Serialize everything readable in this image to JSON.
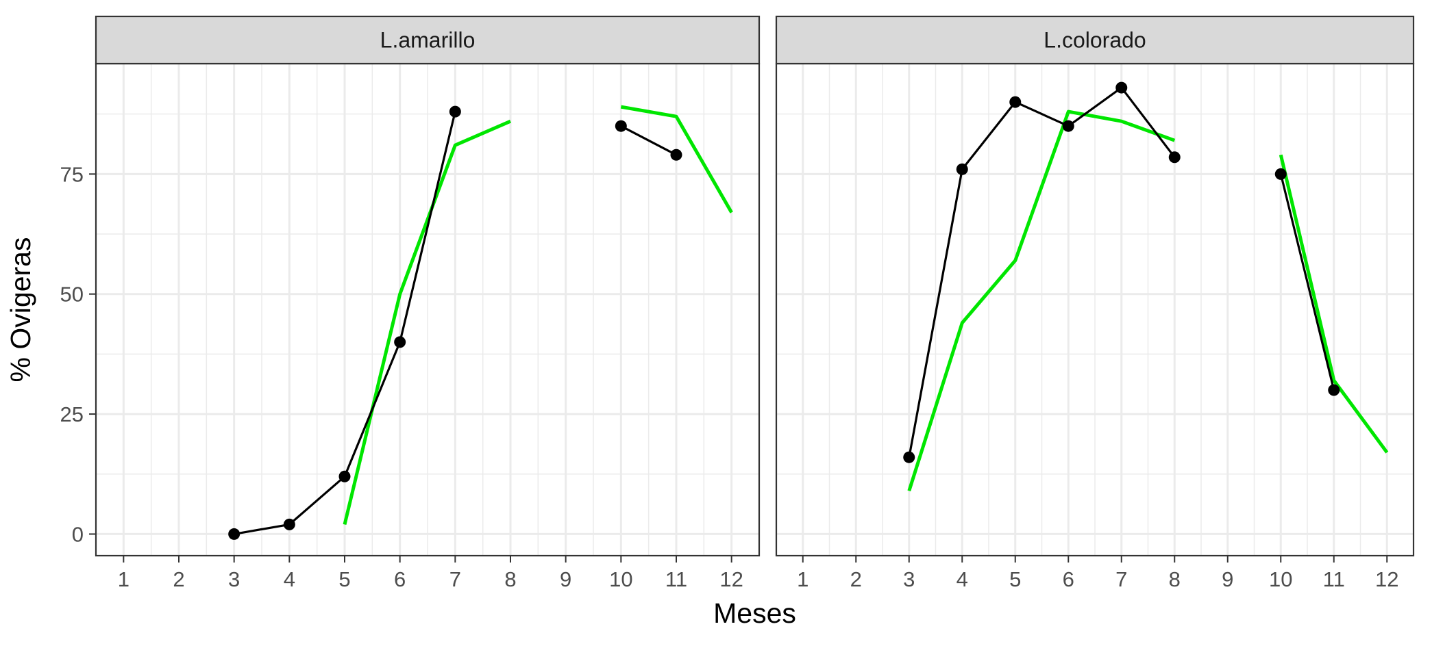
{
  "chart_data": {
    "type": "line",
    "xlabel": "Meses",
    "ylabel": "% Ovigeras",
    "x_ticks": [
      1,
      2,
      3,
      4,
      5,
      6,
      7,
      8,
      9,
      10,
      11,
      12
    ],
    "y_ticks": [
      0,
      25,
      50,
      75
    ],
    "xlim": [
      0.5,
      12.5
    ],
    "ylim": [
      -4.5,
      98
    ],
    "grid": true,
    "colors": {
      "observed": "#000000",
      "fitted": "#00e600",
      "strip_fill": "#d9d9d9",
      "grid": "#ebebeb",
      "border": "#333333"
    },
    "panels": [
      {
        "label": "L.amarillo",
        "observed": [
          [
            [
              3,
              0
            ],
            [
              4,
              2
            ],
            [
              5,
              12
            ],
            [
              6,
              40
            ],
            [
              7,
              88
            ]
          ],
          [
            [
              10,
              85
            ],
            [
              11,
              79
            ]
          ]
        ],
        "fitted": [
          [
            [
              5,
              2
            ],
            [
              6,
              50
            ],
            [
              7,
              81
            ],
            [
              8,
              86
            ]
          ],
          [
            [
              10,
              89
            ],
            [
              11,
              87
            ],
            [
              12,
              67
            ]
          ]
        ]
      },
      {
        "label": "L.colorado",
        "observed": [
          [
            [
              3,
              16
            ],
            [
              4,
              76
            ],
            [
              5,
              90
            ],
            [
              6,
              85
            ],
            [
              7,
              93
            ],
            [
              8,
              78.5
            ]
          ],
          [
            [
              10,
              75
            ],
            [
              11,
              30
            ]
          ]
        ],
        "fitted": [
          [
            [
              3,
              9
            ],
            [
              4,
              44
            ],
            [
              5,
              57
            ],
            [
              6,
              88
            ],
            [
              7,
              86
            ],
            [
              8,
              82
            ]
          ],
          [
            [
              10,
              79
            ],
            [
              11,
              32
            ],
            [
              12,
              17
            ]
          ]
        ]
      }
    ]
  }
}
